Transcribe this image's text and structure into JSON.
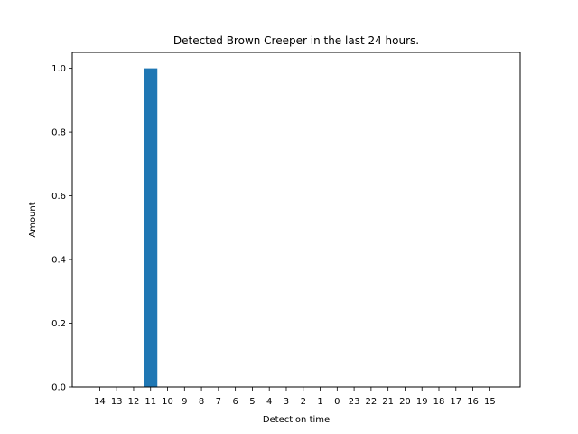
{
  "chart_data": {
    "type": "bar",
    "title": "Detected Brown Creeper in the last 24 hours.",
    "xlabel": "Detection time",
    "ylabel": "Amount",
    "categories": [
      "14",
      "13",
      "12",
      "11",
      "10",
      "9",
      "8",
      "7",
      "6",
      "5",
      "4",
      "3",
      "2",
      "1",
      "0",
      "23",
      "22",
      "21",
      "20",
      "19",
      "18",
      "17",
      "16",
      "15"
    ],
    "values": [
      0,
      0,
      0,
      1,
      0,
      0,
      0,
      0,
      0,
      0,
      0,
      0,
      0,
      0,
      0,
      0,
      0,
      0,
      0,
      0,
      0,
      0,
      0,
      0
    ],
    "ylim": [
      0,
      1.05
    ],
    "yticks": [
      "0.0",
      "0.2",
      "0.4",
      "0.6",
      "0.8",
      "1.0"
    ],
    "bar_color": "#1f77b4",
    "grid": false,
    "legend": false
  }
}
